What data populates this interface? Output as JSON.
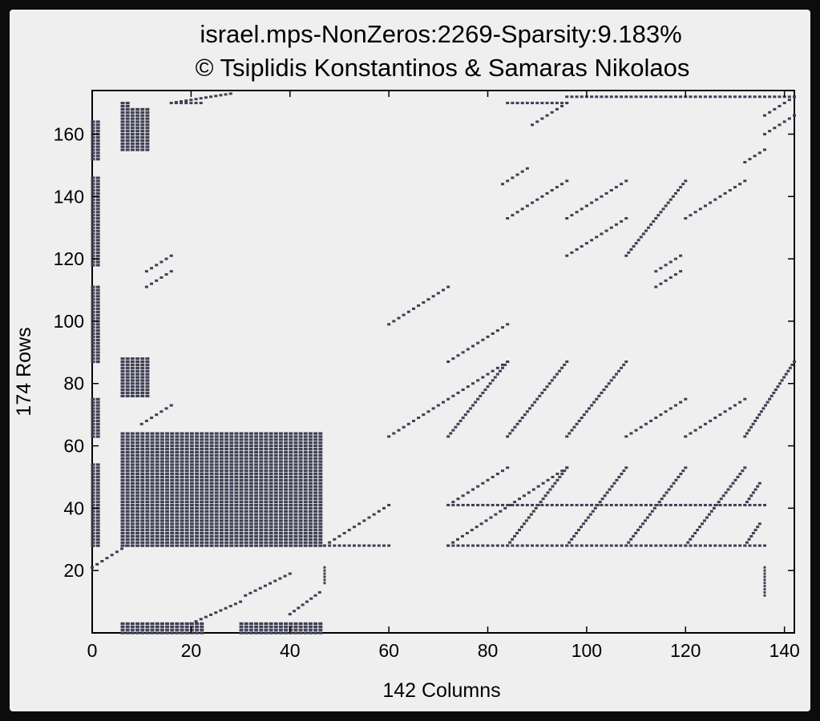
{
  "chart_data": {
    "type": "scatter",
    "title": "israel.mps-NonZeros:2269-Sparsity:9.183%",
    "subtitle": "© Tsiplidis Konstantinos & Samaras Nikolaos",
    "xlabel": "142 Columns",
    "ylabel": "174 Rows",
    "xlim": [
      0,
      142
    ],
    "ylim": [
      0,
      174
    ],
    "xticks": [
      0,
      20,
      40,
      60,
      80,
      100,
      120,
      140
    ],
    "yticks": [
      20,
      40,
      60,
      80,
      100,
      120,
      140,
      160
    ],
    "grid": false,
    "marker_color": "#3f3f55",
    "sparsity_blocks": [
      {
        "name": "left-column-upper",
        "x": [
          0,
          1
        ],
        "y": [
          152,
          164
        ]
      },
      {
        "name": "left-column-mid",
        "x": [
          0,
          1
        ],
        "y": [
          118,
          146
        ]
      },
      {
        "name": "left-column-100",
        "x": [
          0,
          1
        ],
        "y": [
          87,
          111
        ]
      },
      {
        "name": "left-column-70",
        "x": [
          0,
          1
        ],
        "y": [
          63,
          75
        ]
      },
      {
        "name": "left-column-low",
        "x": [
          0,
          1
        ],
        "y": [
          28,
          54
        ]
      },
      {
        "name": "col7-top",
        "x": [
          6,
          7
        ],
        "y": [
          155,
          170
        ]
      },
      {
        "name": "col9-top",
        "x": [
          8,
          11
        ],
        "y": [
          155,
          168
        ]
      },
      {
        "name": "col7-mid",
        "x": [
          6,
          11
        ],
        "y": [
          76,
          88
        ]
      },
      {
        "name": "dense-block",
        "x": [
          6,
          46
        ],
        "y": [
          28,
          64
        ]
      },
      {
        "name": "bottom-strip",
        "x": [
          6,
          22
        ],
        "y": [
          0,
          3
        ]
      },
      {
        "name": "bottom-strip-2",
        "x": [
          30,
          46
        ],
        "y": [
          0,
          3
        ]
      }
    ],
    "diagonals": [
      {
        "x": [
          16,
          28
        ],
        "y": [
          170,
          173
        ]
      },
      {
        "x": [
          11,
          16
        ],
        "y": [
          116,
          121
        ]
      },
      {
        "x": [
          11,
          16
        ],
        "y": [
          111,
          116
        ]
      },
      {
        "x": [
          10,
          16
        ],
        "y": [
          67,
          73
        ]
      },
      {
        "x": [
          0,
          7
        ],
        "y": [
          21,
          28
        ]
      },
      {
        "x": [
          60,
          72
        ],
        "y": [
          99,
          111
        ]
      },
      {
        "x": [
          60,
          84
        ],
        "y": [
          63,
          87
        ]
      },
      {
        "x": [
          47,
          60
        ],
        "y": [
          28,
          41
        ]
      },
      {
        "x": [
          72,
          84
        ],
        "y": [
          87,
          99
        ]
      },
      {
        "x": [
          72,
          84
        ],
        "y": [
          63,
          87
        ]
      },
      {
        "x": [
          72,
          84
        ],
        "y": [
          41,
          53
        ]
      },
      {
        "x": [
          72,
          96
        ],
        "y": [
          28,
          53
        ]
      },
      {
        "x": [
          84,
          96
        ],
        "y": [
          63,
          87
        ]
      },
      {
        "x": [
          84,
          96
        ],
        "y": [
          28,
          53
        ]
      },
      {
        "x": [
          84,
          96
        ],
        "y": [
          133,
          145
        ]
      },
      {
        "x": [
          83,
          88
        ],
        "y": [
          144,
          149
        ]
      },
      {
        "x": [
          96,
          108
        ],
        "y": [
          63,
          87
        ]
      },
      {
        "x": [
          96,
          108
        ],
        "y": [
          28,
          53
        ]
      },
      {
        "x": [
          96,
          108
        ],
        "y": [
          121,
          133
        ]
      },
      {
        "x": [
          96,
          108
        ],
        "y": [
          133,
          145
        ]
      },
      {
        "x": [
          108,
          120
        ],
        "y": [
          63,
          75
        ]
      },
      {
        "x": [
          108,
          120
        ],
        "y": [
          28,
          53
        ]
      },
      {
        "x": [
          108,
          120
        ],
        "y": [
          121,
          145
        ]
      },
      {
        "x": [
          114,
          119
        ],
        "y": [
          116,
          121
        ]
      },
      {
        "x": [
          114,
          119
        ],
        "y": [
          111,
          116
        ]
      },
      {
        "x": [
          120,
          132
        ],
        "y": [
          63,
          75
        ]
      },
      {
        "x": [
          120,
          132
        ],
        "y": [
          28,
          53
        ]
      },
      {
        "x": [
          120,
          132
        ],
        "y": [
          133,
          145
        ]
      },
      {
        "x": [
          132,
          142
        ],
        "y": [
          63,
          87
        ]
      },
      {
        "x": [
          132,
          135
        ],
        "y": [
          41,
          48
        ]
      },
      {
        "x": [
          132,
          135
        ],
        "y": [
          28,
          35
        ]
      },
      {
        "x": [
          132,
          136
        ],
        "y": [
          151,
          155
        ]
      },
      {
        "x": [
          136,
          142
        ],
        "y": [
          160,
          166
        ]
      },
      {
        "x": [
          136,
          142
        ],
        "y": [
          166,
          172
        ]
      },
      {
        "x": [
          89,
          96
        ],
        "y": [
          163,
          170
        ]
      },
      {
        "x": [
          20,
          30
        ],
        "y": [
          3,
          10
        ]
      },
      {
        "x": [
          31,
          40
        ],
        "y": [
          12,
          19
        ]
      },
      {
        "x": [
          40,
          46
        ],
        "y": [
          6,
          13
        ]
      }
    ],
    "horizontal_bands": [
      {
        "y": 28,
        "x": [
          47,
          60
        ]
      },
      {
        "y": 28,
        "x": [
          72,
          136
        ]
      },
      {
        "y": 41,
        "x": [
          72,
          136
        ]
      },
      {
        "y": 170,
        "x": [
          84,
          96
        ]
      },
      {
        "y": 172,
        "x": [
          96,
          142
        ]
      },
      {
        "y": 170,
        "x": [
          17,
          22
        ]
      }
    ],
    "vertical_segments": [
      {
        "x": 47,
        "y": [
          16,
          21
        ]
      },
      {
        "x": 136,
        "y": [
          12,
          21
        ]
      }
    ]
  }
}
